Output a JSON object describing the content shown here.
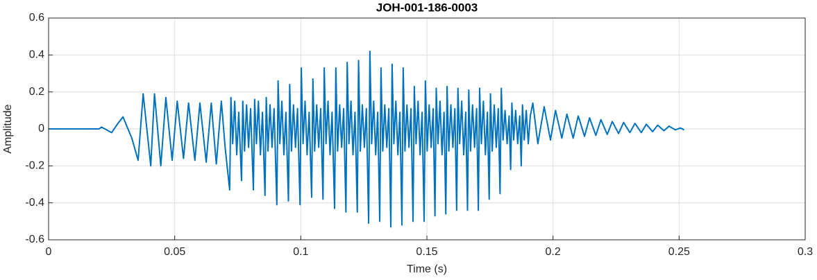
{
  "chart_data": {
    "type": "line",
    "title": "JOH-001-186-0003",
    "x_label": "Time (s)",
    "y_label": "Amplitude",
    "color": "#0072BD",
    "grid": true,
    "xlim": [
      0,
      0.3
    ],
    "xticks": [
      0,
      0.05,
      0.1,
      0.15,
      0.2,
      0.25,
      0.3
    ],
    "ylim": [
      -0.6,
      0.6
    ],
    "yticks": [
      -0.6,
      -0.4,
      -0.2,
      0,
      0.2,
      0.4,
      0.6
    ],
    "x": [
      0,
      0.02,
      0.021,
      0.023,
      0.025,
      0.0275,
      0.0295,
      0.033,
      0.0355,
      0.0375,
      0.0405,
      0.042,
      0.0445,
      0.0465,
      0.049,
      0.051,
      0.0535,
      0.0555,
      0.058,
      0.06,
      0.0625,
      0.0645,
      0.0665,
      0.0685,
      0.07,
      0.0718,
      0.0723,
      0.073,
      0.0738,
      0.0746,
      0.0754,
      0.0765,
      0.077,
      0.0777,
      0.0785,
      0.0793,
      0.0801,
      0.0812,
      0.0817,
      0.0824,
      0.0832,
      0.084,
      0.0848,
      0.0858,
      0.0863,
      0.087,
      0.0878,
      0.0886,
      0.0894,
      0.0905,
      0.091,
      0.0917,
      0.0925,
      0.0933,
      0.0941,
      0.0951,
      0.0956,
      0.0963,
      0.0971,
      0.0979,
      0.0987,
      0.0997,
      0.1002,
      0.1009,
      0.1017,
      0.1025,
      0.1033,
      0.1043,
      0.1048,
      0.1055,
      0.1063,
      0.1071,
      0.1079,
      0.1088,
      0.1093,
      0.11,
      0.1108,
      0.1116,
      0.1124,
      0.1134,
      0.1139,
      0.1146,
      0.1154,
      0.1162,
      0.117,
      0.1179,
      0.1184,
      0.1191,
      0.1199,
      0.1207,
      0.1215,
      0.1224,
      0.1229,
      0.1236,
      0.1244,
      0.1252,
      0.126,
      0.1269,
      0.1274,
      0.1281,
      0.1289,
      0.1297,
      0.1305,
      0.1313,
      0.1318,
      0.1325,
      0.1333,
      0.1341,
      0.1349,
      0.1357,
      0.1362,
      0.1369,
      0.1377,
      0.1385,
      0.1393,
      0.1401,
      0.1406,
      0.1413,
      0.1421,
      0.1429,
      0.1437,
      0.1445,
      0.145,
      0.1457,
      0.1465,
      0.1473,
      0.1481,
      0.1489,
      0.1494,
      0.1501,
      0.1509,
      0.1517,
      0.1525,
      0.1532,
      0.1537,
      0.1544,
      0.1552,
      0.156,
      0.1568,
      0.1575,
      0.158,
      0.1587,
      0.1595,
      0.1603,
      0.1611,
      0.1618,
      0.1623,
      0.163,
      0.1638,
      0.1646,
      0.1654,
      0.1661,
      0.1666,
      0.1673,
      0.1681,
      0.1689,
      0.1697,
      0.1704,
      0.1709,
      0.1716,
      0.1724,
      0.1732,
      0.174,
      0.1747,
      0.1752,
      0.1759,
      0.1767,
      0.1775,
      0.1783,
      0.179,
      0.1795,
      0.1802,
      0.181,
      0.1818,
      0.1826,
      0.1832,
      0.1837,
      0.1844,
      0.1852,
      0.186,
      0.1868,
      0.1874,
      0.1879,
      0.1886,
      0.1894,
      0.1902,
      0.191,
      0.192,
      0.194,
      0.1965,
      0.199,
      0.201,
      0.2035,
      0.2055,
      0.208,
      0.21,
      0.2125,
      0.2145,
      0.217,
      0.219,
      0.2215,
      0.2235,
      0.226,
      0.228,
      0.2305,
      0.2325,
      0.235,
      0.237,
      0.2395,
      0.2415,
      0.244,
      0.246,
      0.2485,
      0.2505,
      0.252
    ],
    "values": [
      0,
      0,
      0.01,
      -0.005,
      -0.02,
      0.03,
      0.065,
      -0.05,
      -0.17,
      0.19,
      -0.2,
      0.19,
      -0.2,
      0.17,
      -0.17,
      0.15,
      -0.16,
      0.14,
      -0.17,
      0.14,
      -0.18,
      0.14,
      -0.19,
      0.15,
      -0.1,
      -0.33,
      0.17,
      -0.08,
      0.15,
      -0.14,
      0.09,
      -0.28,
      0.15,
      -0.12,
      0.13,
      -0.1,
      0.11,
      -0.33,
      0.16,
      -0.08,
      0.15,
      -0.14,
      0.09,
      -0.36,
      0.17,
      -0.12,
      0.13,
      -0.1,
      0.11,
      -0.41,
      0.26,
      -0.08,
      0.15,
      -0.14,
      0.09,
      -0.39,
      0.24,
      -0.12,
      0.13,
      -0.1,
      0.11,
      -0.41,
      0.33,
      -0.08,
      0.15,
      -0.14,
      0.09,
      -0.37,
      0.27,
      -0.12,
      0.13,
      -0.1,
      0.11,
      -0.38,
      0.33,
      -0.08,
      0.15,
      -0.14,
      0.09,
      -0.43,
      0.33,
      -0.12,
      0.13,
      -0.1,
      0.11,
      -0.45,
      0.36,
      -0.08,
      0.15,
      -0.14,
      0.09,
      -0.45,
      0.37,
      -0.12,
      0.13,
      -0.1,
      0.11,
      -0.51,
      0.42,
      -0.08,
      0.15,
      -0.14,
      0.09,
      -0.5,
      0.33,
      -0.12,
      0.13,
      -0.1,
      0.11,
      -0.53,
      0.35,
      -0.08,
      0.15,
      -0.14,
      0.09,
      -0.52,
      0.33,
      -0.12,
      0.13,
      -0.1,
      0.11,
      -0.5,
      0.23,
      -0.08,
      0.15,
      -0.14,
      0.09,
      -0.5,
      0.26,
      -0.12,
      0.13,
      -0.1,
      0.11,
      -0.47,
      0.22,
      -0.08,
      0.15,
      -0.14,
      0.09,
      -0.46,
      0.23,
      -0.12,
      0.13,
      -0.1,
      0.11,
      -0.44,
      0.22,
      -0.08,
      0.15,
      -0.14,
      0.09,
      -0.44,
      0.21,
      -0.12,
      0.13,
      -0.1,
      0.11,
      -0.44,
      0.22,
      -0.08,
      0.15,
      -0.14,
      0.09,
      -0.38,
      0.19,
      -0.12,
      0.13,
      -0.1,
      0.11,
      -0.35,
      0.22,
      -0.06,
      0.1,
      -0.08,
      0.07,
      -0.22,
      0.14,
      -0.06,
      0.1,
      -0.08,
      0.07,
      -0.2,
      0.13,
      -0.06,
      0.1,
      -0.08,
      0.07,
      0.14,
      -0.08,
      0.12,
      -0.06,
      0.1,
      -0.05,
      0.08,
      -0.05,
      0.07,
      -0.04,
      0.06,
      -0.035,
      0.05,
      -0.03,
      0.04,
      -0.025,
      0.035,
      -0.02,
      0.03,
      -0.02,
      0.025,
      -0.015,
      0.02,
      -0.01,
      0.015,
      -0.005,
      0.005,
      -0.005
    ]
  }
}
